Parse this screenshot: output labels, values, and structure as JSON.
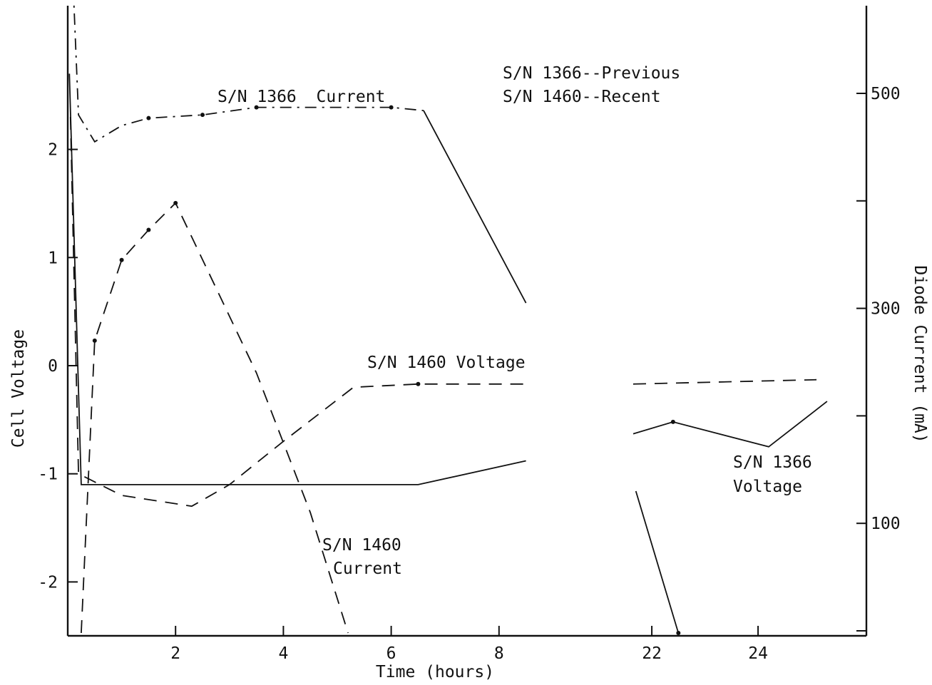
{
  "chart_data": {
    "type": "line",
    "xlabel": "Time (hours)",
    "ylabel_left": "Cell Voltage",
    "ylabel_right": "Diode Current (mA)",
    "x_ticks": [
      "2",
      "4",
      "6",
      "8",
      "22",
      "24"
    ],
    "y_left_ticks": [
      "2",
      "1",
      "0",
      "-1",
      "-2"
    ],
    "y_right_ticks": [
      "500",
      "300",
      "100"
    ],
    "ylim_left": [
      -2.5,
      3.3
    ],
    "ylim_right": [
      -16,
      860
    ],
    "note": [
      "S/N 1366--Previous",
      "S/N 1460--Recent"
    ],
    "labels": {
      "s1366_current": "S/N 1366  Current",
      "s1460_voltage": "S/N 1460 Voltage",
      "s1460_current": [
        "S/N 1460",
        "Current"
      ],
      "s1366_voltage": [
        "S/N 1366",
        "Voltage"
      ]
    },
    "series": [
      {
        "key": "s1366_current",
        "axis": "right",
        "style": "dashdot",
        "points": [
          [
            0.05,
            760
          ],
          [
            0.1,
            600
          ],
          [
            0.2,
            480
          ],
          [
            0.5,
            455
          ],
          [
            1.0,
            470
          ],
          [
            1.5,
            477
          ],
          [
            2.5,
            480
          ],
          [
            3.5,
            487
          ],
          [
            6.0,
            487
          ],
          [
            6.6,
            484
          ]
        ],
        "markers": [
          [
            1.5,
            477
          ],
          [
            2.5,
            480
          ],
          [
            3.5,
            487
          ],
          [
            6.0,
            487
          ]
        ]
      },
      {
        "key": "s1366_current_decline",
        "axis": "right",
        "style": "solid",
        "segments": [
          [
            [
              6.6,
              484
            ],
            [
              8.5,
              305
            ]
          ],
          [
            [
              21.7,
              130
            ],
            [
              22.5,
              -2
            ]
          ]
        ],
        "markers": [
          [
            22.5,
            -2
          ]
        ]
      },
      {
        "key": "s1460_current",
        "axis": "right",
        "style": "longdash",
        "points": [
          [
            0.25,
            -2
          ],
          [
            0.5,
            270
          ],
          [
            1.0,
            345
          ],
          [
            1.5,
            373
          ],
          [
            2.0,
            398
          ],
          [
            3.5,
            240
          ],
          [
            4.5,
            110
          ],
          [
            5.2,
            -2
          ]
        ],
        "markers": [
          [
            0.5,
            270
          ],
          [
            1.0,
            345
          ],
          [
            1.5,
            373
          ],
          [
            2.0,
            398
          ]
        ]
      },
      {
        "key": "s1460_voltage",
        "axis": "left",
        "style": "longdash",
        "segments": [
          [
            [
              0.05,
              2.3
            ],
            [
              0.2,
              -1.0
            ],
            [
              0.6,
              -1.1
            ],
            [
              1.0,
              -1.2
            ],
            [
              2.3,
              -1.3
            ],
            [
              3.0,
              -1.1
            ],
            [
              4.0,
              -0.7
            ],
            [
              5.3,
              -0.2
            ],
            [
              6.5,
              -0.17
            ],
            [
              8.5,
              -0.17
            ]
          ],
          [
            [
              21.65,
              -0.17
            ],
            [
              25.1,
              -0.13
            ]
          ]
        ],
        "markers": [
          [
            6.5,
            -0.17
          ]
        ]
      },
      {
        "key": "s1366_voltage",
        "axis": "left",
        "style": "solid",
        "segments": [
          [
            [
              0.03,
              2.7
            ],
            [
              0.25,
              -1.1
            ],
            [
              6.5,
              -1.1
            ],
            [
              8.5,
              -0.88
            ]
          ],
          [
            [
              21.65,
              -0.63
            ],
            [
              22.4,
              -0.52
            ],
            [
              24.2,
              -0.75
            ],
            [
              25.3,
              -0.33
            ]
          ]
        ],
        "markers": [
          [
            22.4,
            -0.52
          ]
        ]
      }
    ]
  }
}
